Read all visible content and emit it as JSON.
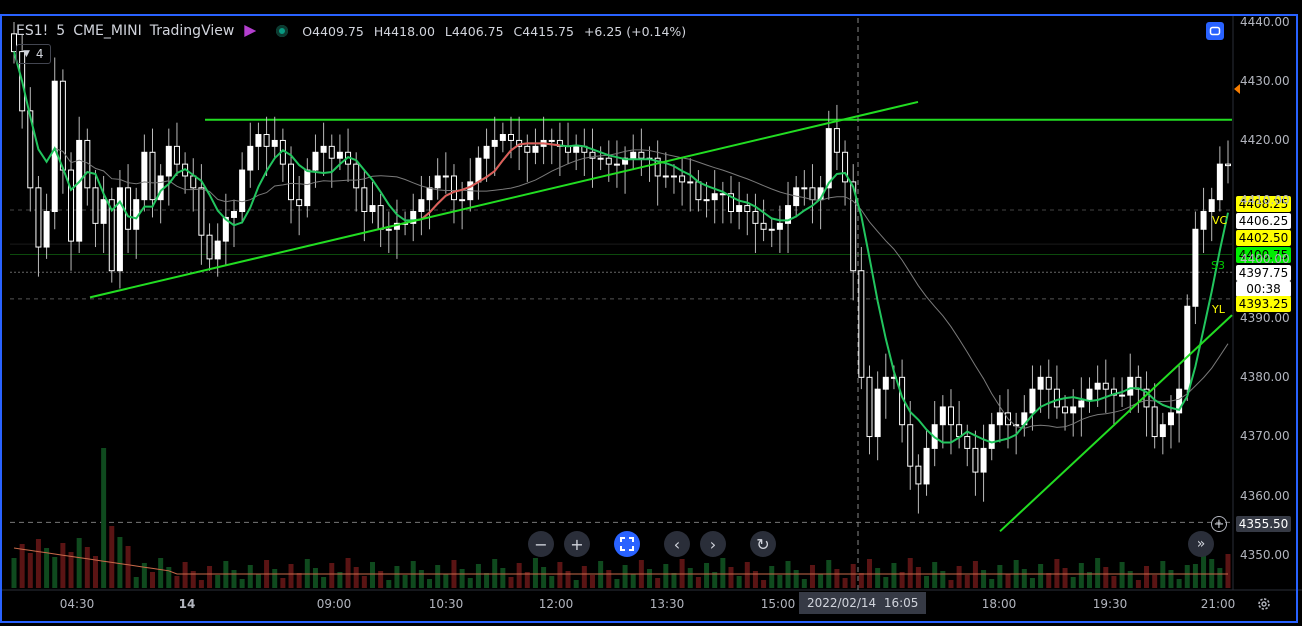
{
  "legend": {
    "symbol": "ES1!",
    "interval": "5",
    "exchange": "CME_MINI",
    "source": "TradingView",
    "open": "O4409.75",
    "high": "H4418.00",
    "low": "L4406.75",
    "close": "C4415.75",
    "change": "+6.25 (+0.14%)"
  },
  "indicator_badge": {
    "count": "4"
  },
  "colors": {
    "background": "#000000",
    "up_candle": "#ffffff",
    "down_candle": "#ffffff",
    "ma_fast": "#22c55e",
    "ma_slow": "#7a7a7a",
    "ma_overlay": "#e05a5a",
    "trendline": "#22dd22",
    "accent": "#2962ff"
  },
  "price_labels": [
    {
      "value": "4408.25",
      "bg": "#ffff00",
      "fg": "#000000"
    },
    {
      "value": "4406.25",
      "bg": "#ffffff",
      "fg": "#000000"
    },
    {
      "value": "4402.50",
      "bg": "#ffff00",
      "fg": "#000000"
    },
    {
      "value": "4400.75",
      "bg": "#00ee00",
      "fg": "#000000"
    },
    {
      "value": "4397.75",
      "bg": "#ffffff",
      "fg": "#000000"
    },
    {
      "value": "00:38",
      "bg": "#ffffff",
      "fg": "#000000"
    },
    {
      "value": "4393.25",
      "bg": "#ffff00",
      "fg": "#000000"
    },
    {
      "value": "4355.50",
      "bg": "#363a45",
      "fg": "#ffffff"
    }
  ],
  "side_tags": {
    "vc": "VC",
    "s3": "S3",
    "yl": "YL"
  },
  "crosshair": {
    "date": "2022/02/14",
    "time": "16:05"
  },
  "chart_data": {
    "type": "candlestick",
    "price_axis": {
      "ticks": [
        "4440.00",
        "4430.00",
        "4420.00",
        "4410.00",
        "4400.00",
        "4390.00",
        "4380.00",
        "4370.00",
        "4360.00",
        "4350.00"
      ],
      "ylim": [
        4348,
        4443
      ]
    },
    "time_axis": {
      "ticks": [
        "04:30",
        "14",
        "09:00",
        "10:30",
        "12:00",
        "13:30",
        "15:00",
        "18:00",
        "19:30",
        "21:00"
      ]
    },
    "horizontal_levels": [
      4423.5,
      4408.25,
      4402.5,
      4400.75,
      4397.75,
      4393.25,
      4355.5
    ],
    "trendlines": [
      {
        "from_price": 4393.5,
        "to_price": 4426.5
      },
      {
        "from_price": 4354.0,
        "to_price": 4390.5
      }
    ],
    "closes": [
      4435,
      4425,
      4412,
      4402,
      4408,
      4430,
      4415,
      4403,
      4420,
      4412,
      4406,
      4410,
      4398,
      4412,
      4405,
      4410,
      4418,
      4410,
      4414,
      4419,
      4416,
      4414,
      4412,
      4404,
      4400,
      4403,
      4407,
      4408,
      4415,
      4419,
      4421,
      4419,
      4420,
      4416,
      4410,
      4409,
      4415,
      4418,
      4419,
      4417,
      4418,
      4416,
      4412,
      4408,
      4409,
      4405,
      4405,
      4406,
      4406,
      4408,
      4410,
      4412,
      4414,
      4414,
      4410,
      4410,
      4413,
      4417,
      4419,
      4420,
      4421,
      4420,
      4419,
      4418,
      4419,
      4420,
      4420,
      4419,
      4418,
      4419,
      4418,
      4417,
      4417,
      4416,
      4416,
      4417,
      4418,
      4417,
      4417,
      4414,
      4414,
      4414,
      4413,
      4413,
      4410,
      4410,
      4411,
      4411,
      4408,
      4409,
      4408,
      4406,
      4405,
      4405,
      4406,
      4409,
      4412,
      4412,
      4410,
      4412,
      4422,
      4418,
      4413,
      4398,
      4380,
      4370,
      4378,
      4380,
      4380,
      4372,
      4365,
      4362,
      4368,
      4372,
      4375,
      4372,
      4370,
      4368,
      4364,
      4368,
      4372,
      4374,
      4372,
      4372,
      4374,
      4378,
      4380,
      4378,
      4375,
      4374,
      4375,
      4376,
      4378,
      4379,
      4378,
      4377,
      4377,
      4380,
      4378,
      4375,
      4370,
      4372,
      4374,
      4378,
      4392,
      4405,
      4408,
      4410,
      4416,
      4415.75
    ]
  }
}
